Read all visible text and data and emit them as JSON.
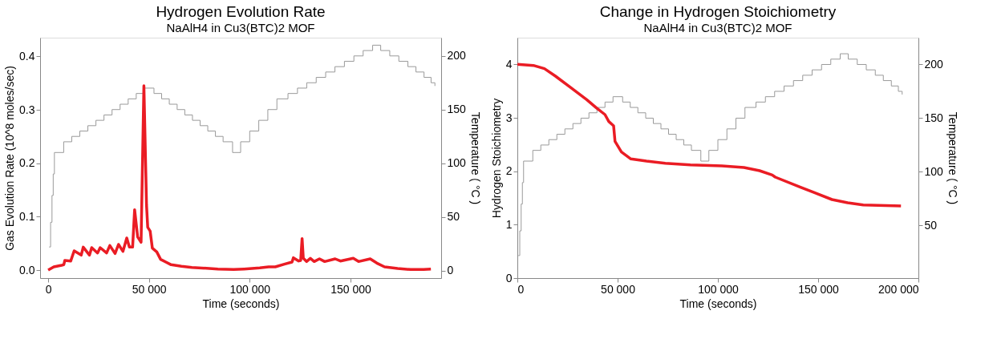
{
  "chart_data": [
    {
      "type": "line",
      "title": "Hydrogen Evolution Rate",
      "subtitle": "NaAlH4 in Cu3(BTC)2 MOF",
      "xlabel": "Time (seconds)",
      "ylabel": "Gas Evolution Rate (10^8 moles/sec)",
      "y2label": "Temperature ( °C )",
      "xlim": [
        -4000,
        195000
      ],
      "xticks": [
        0,
        {
          "value": 50000,
          "label": "50 000"
        },
        {
          "value": 100000,
          "label": "100 000"
        },
        {
          "value": 150000,
          "label": "150 000"
        }
      ],
      "ylim": [
        -0.015,
        0.435
      ],
      "yticks": [
        {
          "value": 0,
          "label": "0.0"
        },
        0.1,
        0.2,
        0.3,
        0.4
      ],
      "y2lim": [
        -7,
        217
      ],
      "y2ticks": [
        0,
        50,
        100,
        150,
        200
      ],
      "grid": false,
      "series": [
        {
          "type": "step",
          "axis": "y2",
          "color": "#9a9a9a",
          "x": [
            500,
            1200,
            1900,
            2500,
            3100,
            7700,
            11700,
            15700,
            19700,
            23700,
            27700,
            31700,
            35700,
            39700,
            43700,
            47700,
            52500,
            56300,
            60100,
            64000,
            67800,
            71600,
            75400,
            79200,
            83000,
            86800,
            91500,
            95500,
            100000,
            104500,
            109000,
            113500,
            119000,
            123700,
            128300,
            133000,
            137700,
            142300,
            147000,
            151700,
            156300,
            161000,
            165000,
            169500,
            174000,
            178500,
            182500,
            186500,
            190000,
            191900
          ],
          "values": [
            22,
            45,
            70,
            90,
            110,
            120,
            125,
            130,
            135,
            140,
            145,
            150,
            155,
            160,
            165,
            170,
            165,
            160,
            155,
            150,
            145,
            140,
            135,
            130,
            125,
            120,
            110,
            120,
            130,
            140,
            150,
            160,
            165,
            170,
            175,
            180,
            185,
            190,
            195,
            200,
            205,
            210,
            205,
            200,
            195,
            190,
            185,
            180,
            175,
            172
          ]
        },
        {
          "type": "line",
          "color": "#ea1c24",
          "x": [
            0,
            2800,
            6700,
            7750,
            8270,
            11200,
            12900,
            16400,
            17400,
            20500,
            21600,
            24500,
            25800,
            29000,
            30600,
            33200,
            34900,
            37100,
            39000,
            40300,
            41900,
            42900,
            44400,
            46100,
            47500,
            48800,
            49400,
            50600,
            51700,
            53900,
            55800,
            58400,
            61000,
            66100,
            71300,
            84200,
            92000,
            97200,
            105000,
            109400,
            112700,
            117200,
            121000,
            121700,
            124300,
            125300,
            126000,
            126600,
            128200,
            130100,
            132000,
            134600,
            137200,
            142400,
            145000,
            151400,
            154000,
            159800,
            163100,
            166900,
            173400,
            179800,
            186300,
            189900
          ],
          "values": [
            0,
            0.006,
            0.009,
            0.01,
            0.018,
            0.017,
            0.036,
            0.028,
            0.043,
            0.028,
            0.042,
            0.032,
            0.042,
            0.032,
            0.046,
            0.031,
            0.048,
            0.035,
            0.06,
            0.043,
            0.043,
            0.113,
            0.062,
            0.052,
            0.345,
            0.122,
            0.08,
            0.073,
            0.041,
            0.034,
            0.02,
            0.015,
            0.01,
            0.007,
            0.005,
            0.002,
            0.001,
            0.002,
            0.004,
            0.006,
            0.006,
            0.011,
            0.015,
            0.023,
            0.017,
            0.018,
            0.059,
            0.022,
            0.016,
            0.022,
            0.016,
            0.021,
            0.016,
            0.021,
            0.017,
            0.022,
            0.016,
            0.021,
            0.013,
            0.006,
            0.003,
            0.001,
            0.001,
            0.002
          ]
        }
      ]
    },
    {
      "type": "line",
      "title": "Change in Hydrogen Stoichiometry",
      "subtitle": "NaAlH4 in Cu3(BTC)2 MOF",
      "xlabel": "Time (seconds)",
      "ylabel": "Hydrogen Stoichiometry",
      "y2label": "Temperature ( °C )",
      "xlim": [
        0,
        200000
      ],
      "xticks": [
        0,
        {
          "value": 50000,
          "label": "50 000"
        },
        {
          "value": 100000,
          "label": "100 000"
        },
        {
          "value": 150000,
          "label": "150 000"
        },
        {
          "value": 200000,
          "label": "200 000"
        }
      ],
      "ylim": [
        0,
        4.5
      ],
      "yticks": [
        0,
        1,
        2,
        3,
        4
      ],
      "y2lim": [
        1,
        225
      ],
      "y2ticks": [
        50,
        100,
        150,
        200
      ],
      "grid": false,
      "series": [
        {
          "type": "step",
          "axis": "y2",
          "color": "#9a9a9a",
          "x": [
            500,
            1200,
            1900,
            2500,
            3100,
            7700,
            11700,
            15700,
            19700,
            23700,
            27700,
            31700,
            35700,
            39700,
            43700,
            47700,
            52500,
            56300,
            60100,
            64000,
            67800,
            71600,
            75400,
            79200,
            83000,
            86800,
            91500,
            95500,
            100000,
            104500,
            109000,
            113500,
            119000,
            123700,
            128300,
            133000,
            137700,
            142300,
            147000,
            151700,
            156300,
            161000,
            165000,
            169500,
            174000,
            178500,
            182500,
            186500,
            190000,
            191900
          ],
          "values": [
            22,
            45,
            70,
            90,
            110,
            120,
            125,
            130,
            135,
            140,
            145,
            150,
            155,
            160,
            165,
            170,
            165,
            160,
            155,
            150,
            145,
            140,
            135,
            130,
            125,
            120,
            110,
            120,
            130,
            140,
            150,
            160,
            165,
            170,
            175,
            180,
            185,
            190,
            195,
            200,
            205,
            210,
            205,
            200,
            195,
            190,
            185,
            180,
            175,
            172
          ]
        },
        {
          "type": "line",
          "color": "#ea1c24",
          "x": [
            0,
            8000,
            13500,
            19000,
            26800,
            34600,
            39300,
            43700,
            45600,
            48000,
            48700,
            51900,
            56600,
            64400,
            73800,
            86300,
            102000,
            113000,
            120800,
            127100,
            128600,
            141200,
            156900,
            164700,
            172500,
            191300
          ],
          "values": [
            4.0,
            3.98,
            3.92,
            3.78,
            3.56,
            3.34,
            3.19,
            3.06,
            2.93,
            2.85,
            2.56,
            2.36,
            2.23,
            2.19,
            2.15,
            2.12,
            2.1,
            2.07,
            2.01,
            1.93,
            1.89,
            1.7,
            1.47,
            1.41,
            1.37,
            1.35
          ]
        }
      ]
    }
  ]
}
